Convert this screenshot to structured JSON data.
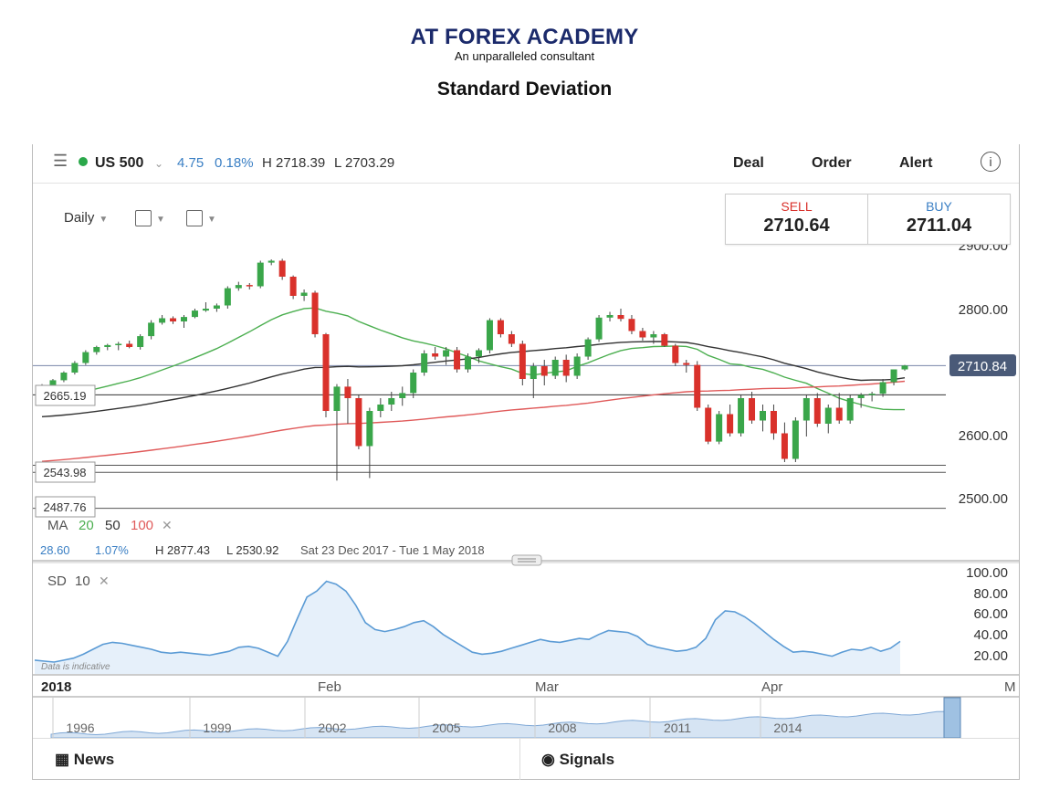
{
  "header": {
    "brand": "AT FOREX ACADEMY",
    "tagline": "An unparalleled consultant",
    "page_title": "Standard Deviation"
  },
  "topbar": {
    "symbol": "US 500",
    "change": "4.75",
    "change_pct": "0.18%",
    "high": "H 2718.39",
    "low": "L 2703.29",
    "tabs": [
      "Deal",
      "Order",
      "Alert"
    ],
    "status_color": "#2aa84a"
  },
  "controls": {
    "interval": "Daily"
  },
  "quote": {
    "sell_label": "SELL",
    "sell_value": "2710.64",
    "buy_label": "BUY",
    "buy_value": "2711.04"
  },
  "price_axis": [
    "2900.00",
    "2800.00",
    "2600.00",
    "2500.00"
  ],
  "price_tag": "2710.84",
  "level_labels": [
    "2665.19",
    "2543.98",
    "2487.76"
  ],
  "ma_legend": {
    "label": "MA",
    "periods": [
      "20",
      "50",
      "100"
    ],
    "colors": [
      "#4caf50",
      "#333333",
      "#e05a5a"
    ]
  },
  "range_info": {
    "abs": "28.60",
    "pct": "1.07%",
    "high": "H 2877.43",
    "low": "L 2530.92",
    "dates": "Sat 23 Dec 2017 - Tue 1 May 2018"
  },
  "sd_legend": {
    "label": "SD",
    "period": "10"
  },
  "sd_axis": [
    "100.00",
    "80.00",
    "60.00",
    "40.00",
    "20.00"
  ],
  "watermark": "Data is indicative",
  "time_axis": [
    "2018",
    "Feb",
    "Mar",
    "Apr",
    "M"
  ],
  "navigator_years": [
    "1996",
    "1999",
    "2002",
    "2005",
    "2008",
    "2011",
    "2014"
  ],
  "bottom": {
    "news": "News",
    "signals": "Signals"
  },
  "chart_data": {
    "type": "candlestick",
    "title": "",
    "candles_ohlc_approx": [
      [
        2673,
        2682,
        2670,
        2680
      ],
      [
        2680,
        2690,
        2676,
        2688
      ],
      [
        2688,
        2702,
        2685,
        2700
      ],
      [
        2700,
        2718,
        2697,
        2715
      ],
      [
        2715,
        2735,
        2712,
        2732
      ],
      [
        2732,
        2742,
        2728,
        2740
      ],
      [
        2740,
        2745,
        2735,
        2743
      ],
      [
        2743,
        2748,
        2735,
        2745
      ],
      [
        2745,
        2750,
        2738,
        2740
      ],
      [
        2740,
        2760,
        2736,
        2757
      ],
      [
        2757,
        2782,
        2752,
        2778
      ],
      [
        2778,
        2790,
        2775,
        2785
      ],
      [
        2785,
        2788,
        2776,
        2780
      ],
      [
        2780,
        2790,
        2770,
        2787
      ],
      [
        2787,
        2800,
        2785,
        2797
      ],
      [
        2797,
        2810,
        2795,
        2800
      ],
      [
        2800,
        2808,
        2795,
        2805
      ],
      [
        2805,
        2835,
        2800,
        2832
      ],
      [
        2832,
        2842,
        2828,
        2837
      ],
      [
        2837,
        2840,
        2830,
        2835
      ],
      [
        2835,
        2875,
        2832,
        2872
      ],
      [
        2872,
        2877,
        2868,
        2875
      ],
      [
        2875,
        2878,
        2845,
        2850
      ],
      [
        2850,
        2852,
        2815,
        2820
      ],
      [
        2820,
        2830,
        2812,
        2825
      ],
      [
        2825,
        2828,
        2755,
        2760
      ],
      [
        2760,
        2762,
        2630,
        2640
      ],
      [
        2640,
        2682,
        2531,
        2678
      ],
      [
        2678,
        2690,
        2620,
        2660
      ],
      [
        2660,
        2665,
        2580,
        2585
      ],
      [
        2585,
        2645,
        2535,
        2640
      ],
      [
        2640,
        2660,
        2630,
        2650
      ],
      [
        2650,
        2670,
        2640,
        2660
      ],
      [
        2660,
        2678,
        2648,
        2668
      ],
      [
        2668,
        2705,
        2660,
        2700
      ],
      [
        2700,
        2735,
        2695,
        2730
      ],
      [
        2730,
        2740,
        2720,
        2725
      ],
      [
        2725,
        2740,
        2712,
        2735
      ],
      [
        2735,
        2740,
        2700,
        2705
      ],
      [
        2705,
        2730,
        2700,
        2725
      ],
      [
        2725,
        2738,
        2715,
        2735
      ],
      [
        2735,
        2785,
        2730,
        2782
      ],
      [
        2782,
        2785,
        2755,
        2760
      ],
      [
        2760,
        2765,
        2740,
        2745
      ],
      [
        2745,
        2750,
        2680,
        2690
      ],
      [
        2690,
        2715,
        2660,
        2710
      ],
      [
        2710,
        2720,
        2680,
        2695
      ],
      [
        2695,
        2725,
        2690,
        2720
      ],
      [
        2720,
        2728,
        2685,
        2695
      ],
      [
        2695,
        2730,
        2690,
        2725
      ],
      [
        2725,
        2755,
        2720,
        2752
      ],
      [
        2752,
        2790,
        2748,
        2786
      ],
      [
        2786,
        2795,
        2780,
        2790
      ],
      [
        2790,
        2800,
        2780,
        2784
      ],
      [
        2784,
        2790,
        2760,
        2765
      ],
      [
        2765,
        2770,
        2750,
        2755
      ],
      [
        2755,
        2765,
        2745,
        2760
      ],
      [
        2760,
        2762,
        2740,
        2742
      ],
      [
        2742,
        2745,
        2710,
        2715
      ],
      [
        2715,
        2720,
        2700,
        2712
      ],
      [
        2712,
        2718,
        2640,
        2645
      ],
      [
        2645,
        2650,
        2588,
        2592
      ],
      [
        2592,
        2640,
        2588,
        2635
      ],
      [
        2635,
        2650,
        2600,
        2605
      ],
      [
        2605,
        2665,
        2600,
        2660
      ],
      [
        2660,
        2670,
        2620,
        2625
      ],
      [
        2625,
        2650,
        2608,
        2640
      ],
      [
        2640,
        2650,
        2595,
        2605
      ],
      [
        2605,
        2622,
        2560,
        2565
      ],
      [
        2565,
        2630,
        2560,
        2625
      ],
      [
        2625,
        2665,
        2600,
        2660
      ],
      [
        2660,
        2668,
        2615,
        2620
      ],
      [
        2620,
        2650,
        2605,
        2645
      ],
      [
        2645,
        2668,
        2620,
        2625
      ],
      [
        2625,
        2665,
        2620,
        2660
      ],
      [
        2660,
        2668,
        2645,
        2665
      ],
      [
        2665,
        2670,
        2655,
        2667
      ],
      [
        2667,
        2690,
        2662,
        2685
      ],
      [
        2685,
        2700,
        2680,
        2705
      ],
      [
        2705,
        2712,
        2703,
        2711
      ]
    ],
    "moving_averages": [
      {
        "name": "MA 20",
        "color": "#4caf50"
      },
      {
        "name": "MA 50",
        "color": "#333333"
      },
      {
        "name": "MA 100",
        "color": "#e05a5a"
      }
    ],
    "y_range": [
      2480,
      2920
    ],
    "horizontal_levels": [
      2710.84,
      2665.19,
      2555,
      2543.98,
      2487.76
    ],
    "sd_series": {
      "name": "SD 10",
      "values": [
        14,
        13,
        12,
        14,
        16,
        20,
        25,
        30,
        32,
        31,
        29,
        27,
        25,
        22,
        21,
        22,
        21,
        20,
        19,
        21,
        23,
        27,
        28,
        26,
        22,
        18,
        33,
        56,
        78,
        84,
        94,
        91,
        84,
        70,
        52,
        45,
        43,
        45,
        48,
        52,
        54,
        48,
        40,
        34,
        28,
        22,
        20,
        21,
        23,
        26,
        29,
        32,
        35,
        33,
        32,
        34,
        36,
        35,
        40,
        44,
        43,
        42,
        38,
        30,
        27,
        25,
        23,
        24,
        27,
        36,
        55,
        64,
        63,
        58,
        51,
        43,
        35,
        28,
        22,
        23,
        22,
        20,
        18,
        22,
        25,
        24,
        27,
        23,
        26,
        33
      ],
      "y_range": [
        0,
        100
      ]
    }
  }
}
